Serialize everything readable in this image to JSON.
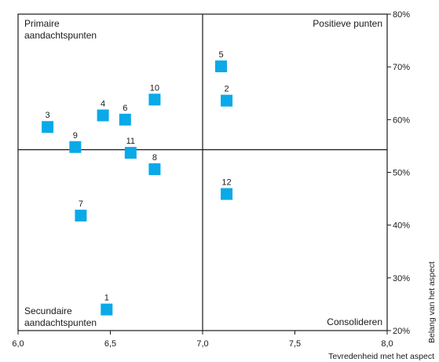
{
  "chart_data": {
    "type": "scatter",
    "xlabel": "Tevredenheid met het aspect",
    "ylabel": "Belang van het aspect",
    "xlim": [
      6.0,
      8.0
    ],
    "ylim": [
      20,
      80
    ],
    "x_ticks": [
      "6,0",
      "6,5",
      "7,0",
      "7,5",
      "8,0"
    ],
    "y_ticks": [
      "20%",
      "30%",
      "40%",
      "50%",
      "60%",
      "70%",
      "80%"
    ],
    "grid": false,
    "marker_color": "#0aa9e8",
    "quadrant_divider": {
      "x": 7.0,
      "y": 54.3
    },
    "quadrant_labels": {
      "top_left": [
        "Primaire",
        "aandachtspunten"
      ],
      "top_right": [
        "Positieve punten"
      ],
      "bottom_left": [
        "Secundaire",
        "aandachtspunten"
      ],
      "bottom_right": [
        "Consolideren"
      ]
    },
    "points": [
      {
        "label": "1",
        "x": 6.48,
        "y": 24.0
      },
      {
        "label": "2",
        "x": 7.13,
        "y": 63.6
      },
      {
        "label": "3",
        "x": 6.16,
        "y": 58.6
      },
      {
        "label": "4",
        "x": 6.46,
        "y": 60.8
      },
      {
        "label": "5",
        "x": 7.1,
        "y": 70.1
      },
      {
        "label": "6",
        "x": 6.58,
        "y": 60.0
      },
      {
        "label": "7",
        "x": 6.34,
        "y": 41.8
      },
      {
        "label": "8",
        "x": 6.74,
        "y": 50.6
      },
      {
        "label": "9",
        "x": 6.31,
        "y": 54.8
      },
      {
        "label": "10",
        "x": 6.74,
        "y": 63.8
      },
      {
        "label": "11",
        "x": 6.61,
        "y": 53.7
      },
      {
        "label": "12",
        "x": 7.13,
        "y": 45.9
      }
    ]
  }
}
